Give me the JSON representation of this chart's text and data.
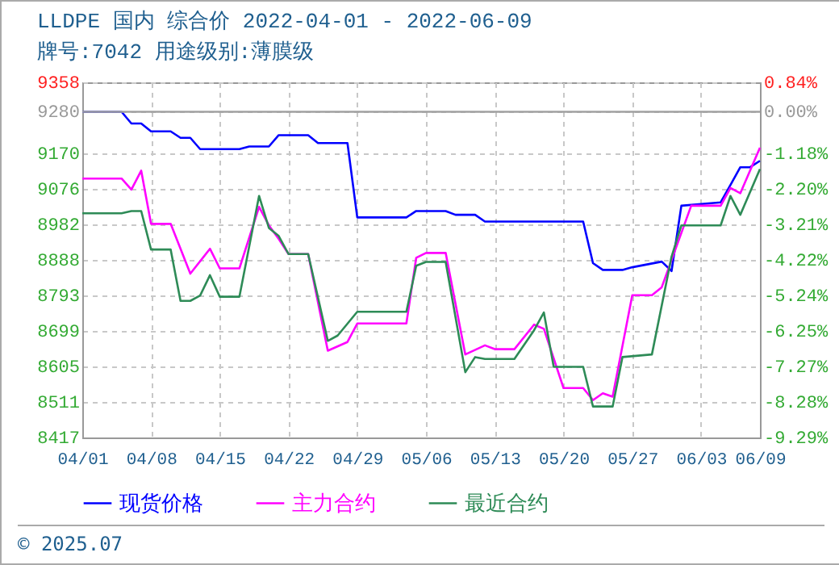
{
  "chart_data": {
    "type": "line",
    "title": "LLDPE 国内 综合价 2022-04-01 - 2022-06-09",
    "subtitle": "牌号:7042 用途级别:薄膜级",
    "annotations": [
      "© 2025.07"
    ],
    "xlim": [
      "2022-04-01",
      "2022-06-09"
    ],
    "xticks": [
      {
        "value": "2022-04-01",
        "label": "04/01"
      },
      {
        "value": "2022-04-08",
        "label": "04/08"
      },
      {
        "value": "2022-04-15",
        "label": "04/15"
      },
      {
        "value": "2022-04-22",
        "label": "04/22"
      },
      {
        "value": "2022-04-29",
        "label": "04/29"
      },
      {
        "value": "2022-05-06",
        "label": "05/06"
      },
      {
        "value": "2022-05-13",
        "label": "05/13"
      },
      {
        "value": "2022-05-20",
        "label": "05/20"
      },
      {
        "value": "2022-05-27",
        "label": "05/27"
      },
      {
        "value": "2022-06-03",
        "label": "06/03"
      },
      {
        "value": "2022-06-09",
        "label": "06/09"
      }
    ],
    "ylim": [
      8417,
      9358
    ],
    "yticks": [
      8417,
      8511,
      8605,
      8699,
      8793,
      8888,
      8982,
      9076,
      9170,
      9280,
      9358
    ],
    "y2lim": [
      -9.29,
      0.84
    ],
    "y2ticks": [
      {
        "value": -9.29,
        "label": "-9.29%"
      },
      {
        "value": -8.28,
        "label": "-8.28%"
      },
      {
        "value": -7.27,
        "label": "-7.27%"
      },
      {
        "value": -6.25,
        "label": "-6.25%"
      },
      {
        "value": -5.24,
        "label": "-5.24%"
      },
      {
        "value": -4.22,
        "label": "-4.22%"
      },
      {
        "value": -3.21,
        "label": "-3.21%"
      },
      {
        "value": -2.2,
        "label": "-2.20%"
      },
      {
        "value": -1.18,
        "label": "-1.18%"
      },
      {
        "value": 0,
        "label": "0.00%"
      },
      {
        "value": 0.84,
        "label": "0.84%"
      }
    ],
    "ref_lines": [
      {
        "axis": "y",
        "value": 9280,
        "color": "#a0a0a0"
      }
    ],
    "grid": true,
    "legend": "bottom",
    "marker": "none",
    "line_style": "solid",
    "series": [
      {
        "name": "现货价格",
        "color": "#0000ff",
        "x": [
          "2022-04-01",
          "2022-04-05",
          "2022-04-06",
          "2022-04-07",
          "2022-04-08",
          "2022-04-10",
          "2022-04-11",
          "2022-04-12",
          "2022-04-13",
          "2022-04-17",
          "2022-04-18",
          "2022-04-20",
          "2022-04-21",
          "2022-04-24",
          "2022-04-25",
          "2022-04-28",
          "2022-04-29",
          "2022-05-04",
          "2022-05-05",
          "2022-05-08",
          "2022-05-09",
          "2022-05-11",
          "2022-05-12",
          "2022-05-22",
          "2022-05-23",
          "2022-05-24",
          "2022-05-26",
          "2022-05-27",
          "2022-05-30",
          "2022-05-31",
          "2022-06-01",
          "2022-06-05",
          "2022-06-06",
          "2022-06-07",
          "2022-06-08",
          "2022-06-09"
        ],
        "values": [
          9280,
          9280,
          9249,
          9249,
          9228,
          9228,
          9211,
          9211,
          9181,
          9181,
          9188,
          9188,
          9218,
          9218,
          9197,
          9197,
          9000,
          9000,
          9017,
          9017,
          9007,
          9007,
          8989,
          8989,
          8879,
          8861,
          8861,
          8868,
          8883,
          8858,
          9031,
          9040,
          9086,
          9133,
          9133,
          9150
        ]
      },
      {
        "name": "主力合约",
        "color": "#ff00ff",
        "x": [
          "2022-04-01",
          "2022-04-05",
          "2022-04-06",
          "2022-04-07",
          "2022-04-08",
          "2022-04-10",
          "2022-04-12",
          "2022-04-14",
          "2022-04-15",
          "2022-04-17",
          "2022-04-19",
          "2022-04-20",
          "2022-04-21",
          "2022-04-22",
          "2022-04-24",
          "2022-04-26",
          "2022-04-28",
          "2022-04-29",
          "2022-05-04",
          "2022-05-05",
          "2022-05-06",
          "2022-05-08",
          "2022-05-10",
          "2022-05-12",
          "2022-05-13",
          "2022-05-15",
          "2022-05-17",
          "2022-05-18",
          "2022-05-20",
          "2022-05-22",
          "2022-05-23",
          "2022-05-24",
          "2022-05-25",
          "2022-05-27",
          "2022-05-29",
          "2022-05-30",
          "2022-06-02",
          "2022-06-05",
          "2022-06-06",
          "2022-06-07",
          "2022-06-09"
        ],
        "values": [
          9103,
          9103,
          9074,
          9124,
          8983,
          8983,
          8851,
          8917,
          8865,
          8865,
          9028,
          8979,
          8943,
          8903,
          8903,
          8647,
          8670,
          8719,
          8719,
          8893,
          8906,
          8906,
          8637,
          8661,
          8651,
          8651,
          8716,
          8705,
          8548,
          8548,
          8516,
          8534,
          8525,
          8794,
          8794,
          8815,
          9031,
          9031,
          9078,
          9064,
          9185
        ]
      },
      {
        "name": "最近合约",
        "color": "#2e8b57",
        "x": [
          "2022-04-01",
          "2022-04-05",
          "2022-04-06",
          "2022-04-07",
          "2022-04-08",
          "2022-04-10",
          "2022-04-11",
          "2022-04-12",
          "2022-04-13",
          "2022-04-14",
          "2022-04-15",
          "2022-04-17",
          "2022-04-19",
          "2022-04-20",
          "2022-04-21",
          "2022-04-22",
          "2022-04-24",
          "2022-04-26",
          "2022-04-27",
          "2022-04-29",
          "2022-05-04",
          "2022-05-05",
          "2022-05-06",
          "2022-05-08",
          "2022-05-10",
          "2022-05-11",
          "2022-05-12",
          "2022-05-15",
          "2022-05-17",
          "2022-05-18",
          "2022-05-19",
          "2022-05-22",
          "2022-05-23",
          "2022-05-25",
          "2022-05-26",
          "2022-05-29",
          "2022-05-31",
          "2022-06-01",
          "2022-06-05",
          "2022-06-06",
          "2022-06-07",
          "2022-06-09"
        ],
        "values": [
          9011,
          9011,
          9017,
          9017,
          8915,
          8915,
          8779,
          8779,
          8793,
          8847,
          8790,
          8790,
          9057,
          8972,
          8951,
          8903,
          8903,
          8673,
          8687,
          8750,
          8750,
          8872,
          8882,
          8882,
          8590,
          8630,
          8625,
          8625,
          8701,
          8748,
          8604,
          8604,
          8499,
          8499,
          8630,
          8637,
          8896,
          8979,
          8979,
          9057,
          9007,
          9128
        ]
      }
    ]
  }
}
